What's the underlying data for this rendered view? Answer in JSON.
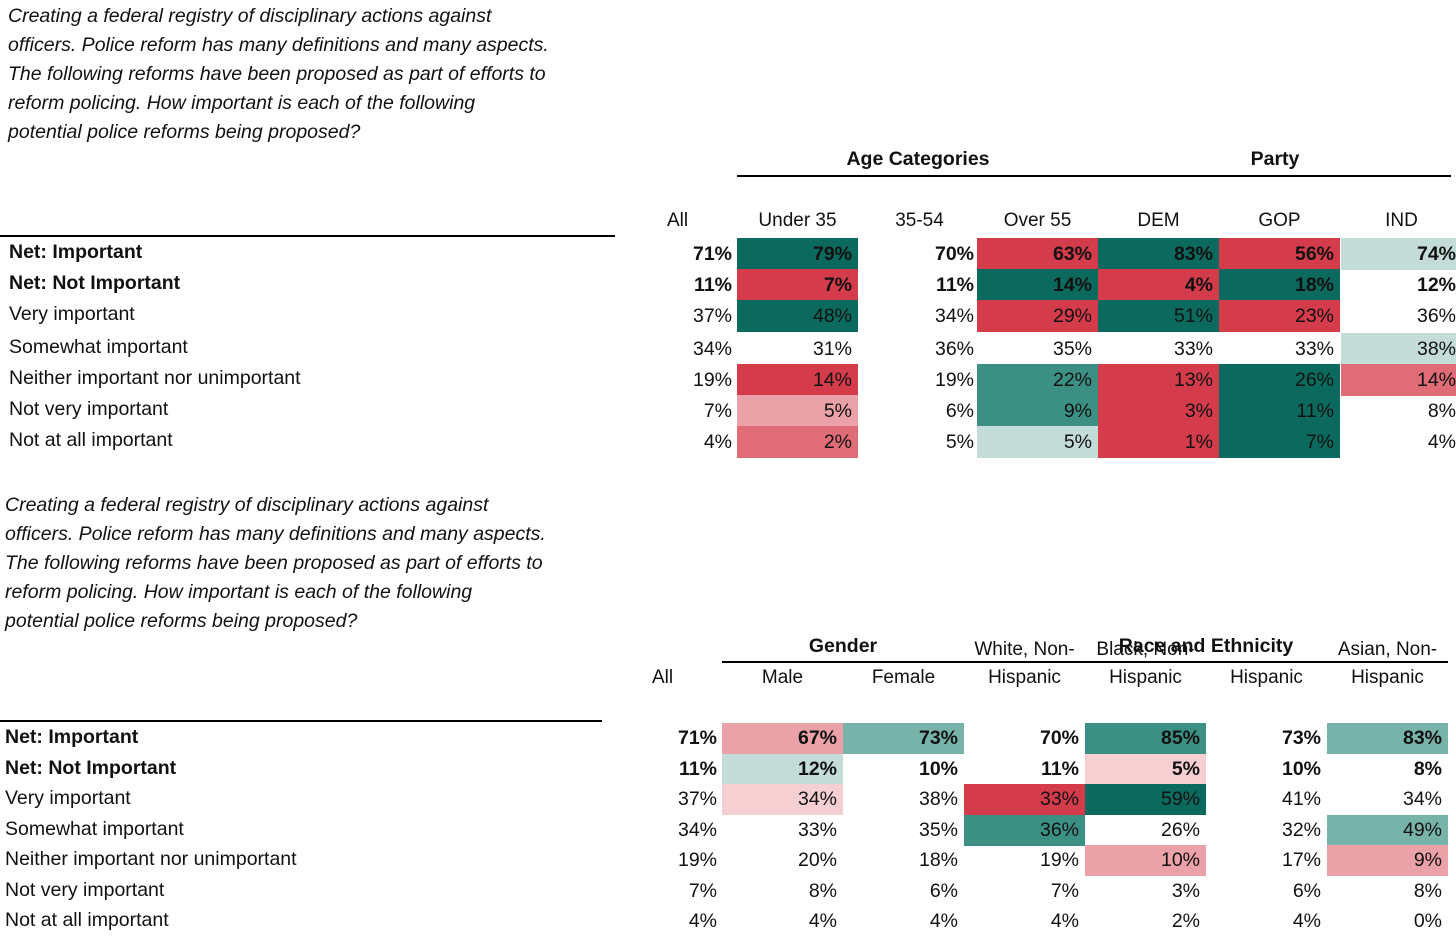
{
  "question_text": "Creating a federal registry of disciplinary actions against\nofficers. Police reform has many definitions and many aspects.\nThe following reforms have been proposed as part of efforts to\nreform policing. How important is each of the following\npotential police reforms being proposed?",
  "palette": {
    "teal_dark": "#0b6a5d",
    "teal_mid": "#3b8f83",
    "teal_soft": "#78b3aa",
    "teal_pale": "#c3dcd7",
    "red_strong": "#d43b4b",
    "red_mid": "#e06c77",
    "red_soft": "#eaa1a7",
    "red_pale": "#f6cfd3"
  },
  "rows": [
    {
      "label": "Net: Important",
      "bold": true
    },
    {
      "label": "Net: Not Important",
      "bold": true
    },
    {
      "label": "Very important",
      "bold": false
    },
    {
      "label": "Somewhat important",
      "bold": false
    },
    {
      "label": "Neither important nor unimportant",
      "bold": false
    },
    {
      "label": "Not very important",
      "bold": false
    },
    {
      "label": "Not at all important",
      "bold": false
    }
  ],
  "table1": {
    "groups": [
      {
        "label": "Age Categories"
      },
      {
        "label": "Party"
      }
    ],
    "columns": [
      {
        "label": "All"
      },
      {
        "label": "Under 35"
      },
      {
        "label": "35-54"
      },
      {
        "label": "Over 55"
      },
      {
        "label": "DEM"
      },
      {
        "label": "GOP"
      },
      {
        "label": "IND"
      }
    ],
    "values": [
      [
        "71%",
        "79%",
        "70%",
        "63%",
        "83%",
        "56%",
        "74%"
      ],
      [
        "11%",
        "7%",
        "11%",
        "14%",
        "4%",
        "18%",
        "12%"
      ],
      [
        "37%",
        "48%",
        "34%",
        "29%",
        "51%",
        "23%",
        "36%"
      ],
      [
        "34%",
        "31%",
        "36%",
        "35%",
        "33%",
        "33%",
        "38%"
      ],
      [
        "19%",
        "14%",
        "19%",
        "22%",
        "13%",
        "26%",
        "14%"
      ],
      [
        "7%",
        "5%",
        "6%",
        "9%",
        "3%",
        "11%",
        "8%"
      ],
      [
        "4%",
        "2%",
        "5%",
        "5%",
        "1%",
        "7%",
        "4%"
      ]
    ],
    "shading": [
      [
        "",
        "teal_dark",
        "",
        "red_strong",
        "teal_dark",
        "red_strong",
        "teal_pale"
      ],
      [
        "",
        "red_strong",
        "",
        "teal_dark",
        "red_strong",
        "teal_dark",
        ""
      ],
      [
        "",
        "teal_dark",
        "",
        "red_strong",
        "teal_dark",
        "red_strong",
        ""
      ],
      [
        "",
        "",
        "",
        "",
        "",
        "",
        "teal_pale"
      ],
      [
        "",
        "red_strong",
        "",
        "teal_mid",
        "red_strong",
        "teal_dark",
        "red_mid"
      ],
      [
        "",
        "red_soft",
        "",
        "teal_mid",
        "red_strong",
        "teal_dark",
        ""
      ],
      [
        "",
        "red_mid",
        "",
        "teal_pale",
        "red_strong",
        "teal_dark",
        ""
      ]
    ]
  },
  "table2": {
    "groups": [
      {
        "label": "Gender"
      },
      {
        "label": "Race and Ethnicity"
      }
    ],
    "columns": [
      {
        "label": "All"
      },
      {
        "label": "Male"
      },
      {
        "label": "Female"
      },
      {
        "label": "White, Non-\nHispanic"
      },
      {
        "label": "Black, Non-\nHispanic"
      },
      {
        "label": "Hispanic"
      },
      {
        "label": "Asian, Non-\nHispanic"
      }
    ],
    "values": [
      [
        "71%",
        "67%",
        "73%",
        "70%",
        "85%",
        "73%",
        "83%"
      ],
      [
        "11%",
        "12%",
        "10%",
        "11%",
        "5%",
        "10%",
        "8%"
      ],
      [
        "37%",
        "34%",
        "38%",
        "33%",
        "59%",
        "41%",
        "34%"
      ],
      [
        "34%",
        "33%",
        "35%",
        "36%",
        "26%",
        "32%",
        "49%"
      ],
      [
        "19%",
        "20%",
        "18%",
        "19%",
        "10%",
        "17%",
        "9%"
      ],
      [
        "7%",
        "8%",
        "6%",
        "7%",
        "3%",
        "6%",
        "8%"
      ],
      [
        "4%",
        "4%",
        "4%",
        "4%",
        "2%",
        "4%",
        "0%"
      ]
    ],
    "shading": [
      [
        "",
        "red_soft",
        "teal_soft",
        "",
        "teal_mid",
        "",
        "teal_soft"
      ],
      [
        "",
        "teal_pale",
        "",
        "",
        "red_pale",
        "",
        ""
      ],
      [
        "",
        "red_pale",
        "",
        "red_strong",
        "teal_dark",
        "",
        ""
      ],
      [
        "",
        "",
        "",
        "teal_mid",
        "",
        "",
        "teal_soft"
      ],
      [
        "",
        "",
        "",
        "",
        "red_soft",
        "",
        "red_soft"
      ],
      [
        "",
        "",
        "",
        "",
        "",
        "",
        ""
      ],
      [
        "",
        "",
        "",
        "",
        "",
        "",
        ""
      ]
    ]
  }
}
